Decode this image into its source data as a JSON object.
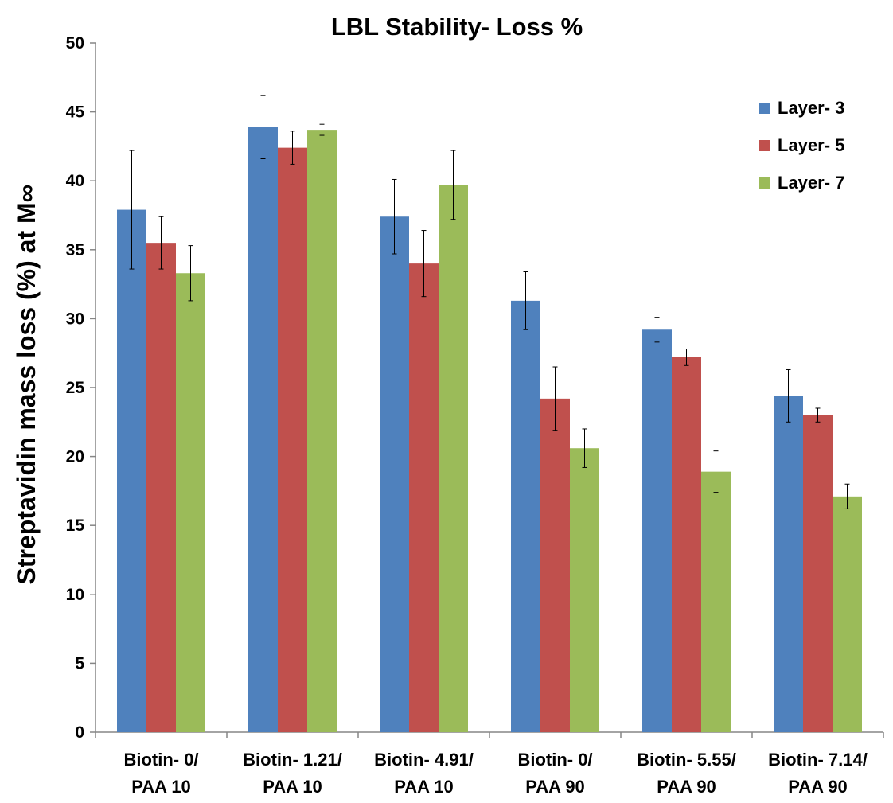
{
  "chart_data": {
    "type": "bar",
    "title": "LBL Stability- Loss %",
    "ylabel": "Streptavidin mass loss (%) at M∞",
    "xlabel": "",
    "ylim": [
      0,
      50
    ],
    "yticks": [
      0,
      5,
      10,
      15,
      20,
      25,
      30,
      35,
      40,
      45,
      50
    ],
    "grid": false,
    "legend_position": "top-right",
    "categories": [
      [
        "Biotin- 0/",
        "PAA 10"
      ],
      [
        "Biotin- 1.21/",
        "PAA 10"
      ],
      [
        "Biotin- 4.91/",
        "PAA 10"
      ],
      [
        "Biotin- 0/",
        "PAA 90"
      ],
      [
        "Biotin- 5.55/",
        "PAA 90"
      ],
      [
        "Biotin- 7.14/",
        "PAA 90"
      ]
    ],
    "series": [
      {
        "name": "Layer- 3",
        "color": "#4f81bd",
        "values": [
          37.9,
          43.9,
          37.4,
          31.3,
          29.2,
          24.4
        ],
        "errors": [
          4.3,
          2.3,
          2.7,
          2.1,
          0.9,
          1.9
        ]
      },
      {
        "name": "Layer- 5",
        "color": "#c0504d",
        "values": [
          35.5,
          42.4,
          34.0,
          24.2,
          27.2,
          23.0
        ],
        "errors": [
          1.9,
          1.2,
          2.4,
          2.3,
          0.6,
          0.5
        ]
      },
      {
        "name": "Layer- 7",
        "color": "#9bbb59",
        "values": [
          33.3,
          43.7,
          39.7,
          20.6,
          18.9,
          17.1
        ],
        "errors": [
          2.0,
          0.4,
          2.5,
          1.4,
          1.5,
          0.9
        ]
      }
    ]
  }
}
